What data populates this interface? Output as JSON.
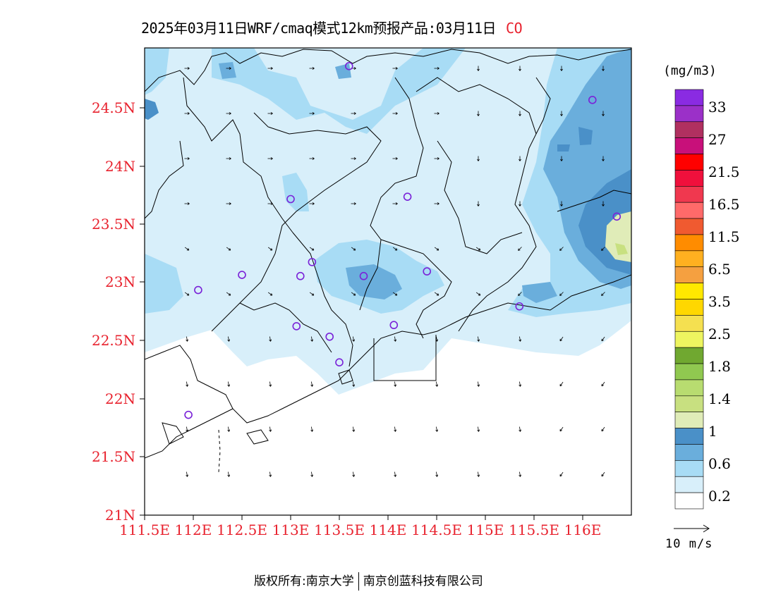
{
  "title": {
    "text": "2025年03月11日WRF/cmaq模式12km预报产品:03月11日",
    "species": "CO"
  },
  "axes": {
    "y_labels": [
      "24.5N",
      "24N",
      "23.5N",
      "23N",
      "22.5N",
      "22N",
      "21.5N",
      "21N"
    ],
    "x_labels": [
      "111.5E",
      "112E",
      "112.5E",
      "113E",
      "113.5E",
      "114E",
      "114.5E",
      "115E",
      "115.5E",
      "116E"
    ]
  },
  "colorbar": {
    "unit": "(mg/m3)",
    "labels": [
      "33",
      "27",
      "21.5",
      "16.5",
      "11.5",
      "6.5",
      "3.5",
      "2.5",
      "1.8",
      "1.4",
      "1",
      "0.6",
      "0.2"
    ],
    "colors_top_to_bottom": [
      "#8a2be2",
      "#9b30c8",
      "#b03060",
      "#c8107a",
      "#ff0000",
      "#f0103c",
      "#f0384f",
      "#ff6a6a",
      "#f05a30",
      "#ff8c00",
      "#ffb020",
      "#f5a040",
      "#ffe800",
      "#ffd700",
      "#f5e050",
      "#eef560",
      "#70a830",
      "#90c850",
      "#b8dc70",
      "#c8e080",
      "#e0ecb8",
      "#4a90c8",
      "#6aaedc",
      "#a8dcf5",
      "#d8effa",
      "#ffffff"
    ]
  },
  "wind": {
    "reference_label": "10 m/s"
  },
  "stations": [
    {
      "lon": 113.6,
      "lat": 24.85
    },
    {
      "lon": 116.1,
      "lat": 24.56
    },
    {
      "lon": 113.0,
      "lat": 23.71
    },
    {
      "lon": 114.2,
      "lat": 23.73
    },
    {
      "lon": 116.35,
      "lat": 23.56
    },
    {
      "lon": 112.5,
      "lat": 23.06
    },
    {
      "lon": 113.1,
      "lat": 23.05
    },
    {
      "lon": 113.22,
      "lat": 23.17
    },
    {
      "lon": 113.75,
      "lat": 23.05
    },
    {
      "lon": 114.4,
      "lat": 23.09
    },
    {
      "lon": 112.05,
      "lat": 22.93
    },
    {
      "lon": 115.35,
      "lat": 22.79
    },
    {
      "lon": 113.06,
      "lat": 22.62
    },
    {
      "lon": 113.4,
      "lat": 22.53
    },
    {
      "lon": 114.06,
      "lat": 22.63
    },
    {
      "lon": 113.5,
      "lat": 22.31
    },
    {
      "lon": 111.95,
      "lat": 21.86
    }
  ],
  "copyright": {
    "left": "版权所有:南京大学",
    "right": "南京创蓝科技有限公司"
  }
}
